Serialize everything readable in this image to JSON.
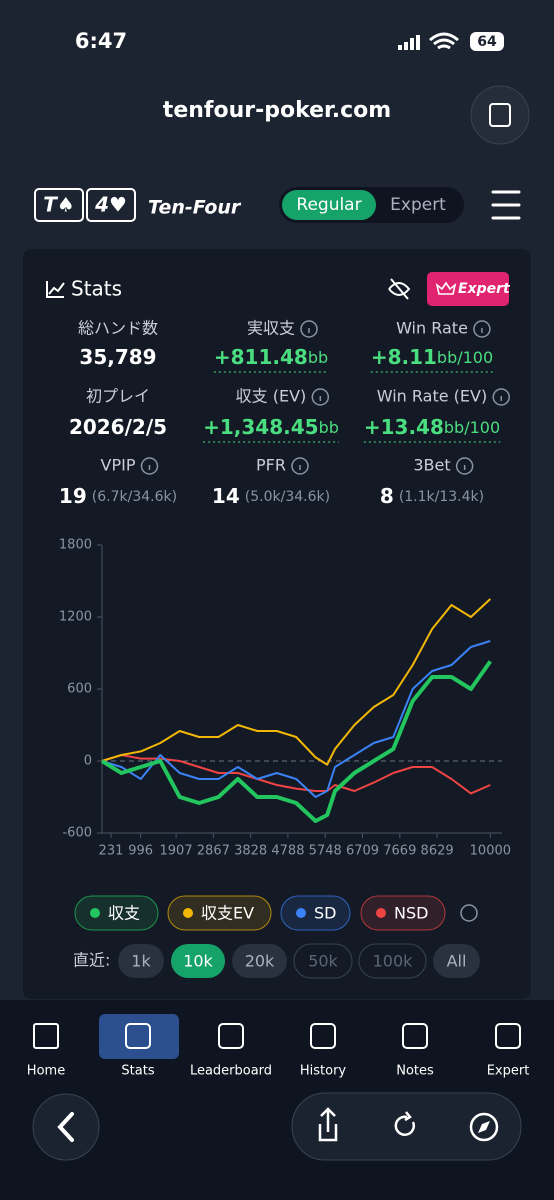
{
  "status_bar": {
    "time": "6:47",
    "battery": "64"
  },
  "browser": {
    "url": "tenfour-poker.com"
  },
  "app_header": {
    "logo_cards": [
      "T♠",
      "4♥"
    ],
    "brand": "Ten-Four",
    "mode_toggle": [
      "Regular",
      "Expert"
    ]
  },
  "stats_card": {
    "title": "Stats",
    "expert_badge": "Expert",
    "items": [
      {
        "label": "総ハンド数",
        "value": "35,789"
      },
      {
        "label": "実収支",
        "value": "+811.48",
        "unit": "bb"
      },
      {
        "label": "Win Rate",
        "value": "+8.11",
        "unit": "bb/100"
      },
      {
        "label": "初プレイ",
        "value": "2026/2/5"
      },
      {
        "label": "収支 (EV)",
        "value": "+1,348.45",
        "unit": "bb"
      },
      {
        "label": "Win Rate (EV)",
        "value": "+13.48",
        "unit": "bb/100"
      },
      {
        "label": "VPIP",
        "value": "19",
        "detail": "(6.7k/34.6k)"
      },
      {
        "label": "PFR",
        "value": "14",
        "detail": "(5.0k/34.6k)"
      },
      {
        "label": "3Bet",
        "value": "8",
        "detail": "(1.1k/13.4k)"
      }
    ],
    "range_filter": {
      "label": "直近:",
      "options": [
        "1k",
        "10k",
        "20k",
        "50k",
        "100k",
        "All"
      ]
    }
  },
  "chart_data": {
    "type": "line",
    "x": [
      0,
      500,
      1000,
      1500,
      2000,
      2500,
      3000,
      3500,
      4000,
      4500,
      5000,
      5500,
      5800,
      6000,
      6500,
      7000,
      7500,
      8000,
      8500,
      9000,
      9500,
      10000
    ],
    "series": [
      {
        "name": "収支",
        "color": "#22c55e",
        "values": [
          0,
          -100,
          -50,
          0,
          -300,
          -350,
          -300,
          -150,
          -300,
          -300,
          -350,
          -500,
          -450,
          -250,
          -100,
          0,
          100,
          500,
          700,
          700,
          600,
          830
        ]
      },
      {
        "name": "収支EV",
        "color": "#f2b705",
        "values": [
          0,
          50,
          80,
          150,
          250,
          200,
          200,
          300,
          250,
          250,
          200,
          30,
          -30,
          100,
          300,
          450,
          550,
          800,
          1100,
          1300,
          1200,
          1350
        ]
      },
      {
        "name": "SD",
        "color": "#3b82f6",
        "values": [
          0,
          -50,
          -150,
          50,
          -100,
          -150,
          -150,
          -50,
          -150,
          -100,
          -150,
          -300,
          -250,
          -50,
          50,
          150,
          200,
          600,
          750,
          800,
          950,
          1000
        ]
      },
      {
        "name": "NSD",
        "color": "#ef4444",
        "values": [
          0,
          50,
          20,
          20,
          0,
          -50,
          -100,
          -100,
          -150,
          -200,
          -230,
          -250,
          -250,
          -200,
          -250,
          -180,
          -100,
          -50,
          -50,
          -150,
          -270,
          -200
        ]
      }
    ],
    "xlim": [
      0,
      10300
    ],
    "ylim": [
      -600,
      1800
    ],
    "xticks": [
      231,
      996,
      1907,
      2867,
      3828,
      4788,
      5748,
      6709,
      7669,
      8629,
      10000
    ],
    "yticks": [
      -600,
      0,
      600,
      1200,
      1800
    ]
  },
  "nav": {
    "tabs": [
      "Home",
      "Stats",
      "Leaderboard",
      "History",
      "Notes",
      "Expert"
    ]
  }
}
